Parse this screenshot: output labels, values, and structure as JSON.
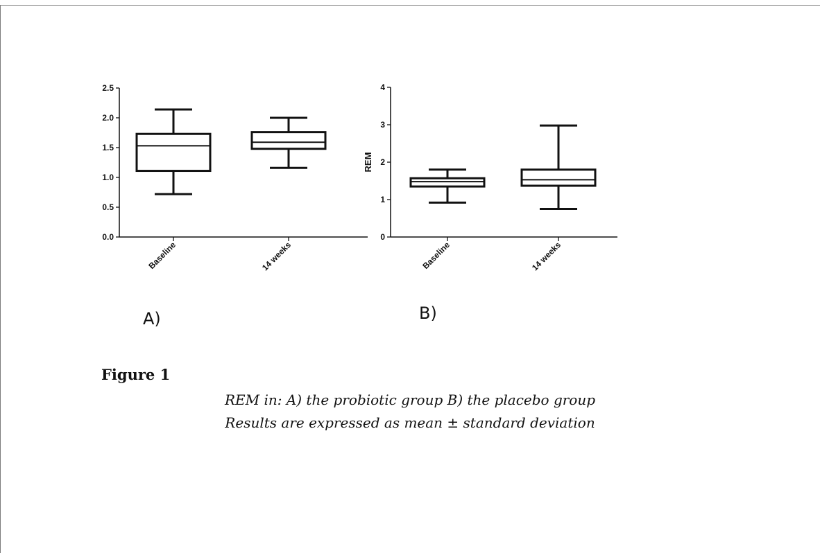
{
  "figure": {
    "title": "Figure 1",
    "caption_line1": "REM in: A) the probiotic group B) the placebo group",
    "caption_line2": "Results are expressed as mean ± standard deviation"
  },
  "chart_data": [
    {
      "type": "box",
      "panel_label": "A)",
      "ylabel": "",
      "ylim": [
        0,
        2.5
      ],
      "yticks": [
        "0.0",
        "0.5",
        "1.0",
        "1.5",
        "2.0",
        "2.5"
      ],
      "categories": [
        "Baseline",
        "14 weeks"
      ],
      "boxes": [
        {
          "category": "Baseline",
          "min": 0.72,
          "q1": 1.11,
          "median": 1.53,
          "q3": 1.73,
          "max": 2.14
        },
        {
          "category": "14 weeks",
          "min": 1.16,
          "q1": 1.48,
          "median": 1.59,
          "q3": 1.76,
          "max": 2.0
        }
      ],
      "grid": false
    },
    {
      "type": "box",
      "panel_label": "B)",
      "ylabel": "REM",
      "ylim": [
        0,
        4
      ],
      "yticks": [
        "0",
        "1",
        "2",
        "3",
        "4"
      ],
      "categories": [
        "Baseline",
        "14 weeks"
      ],
      "boxes": [
        {
          "category": "Baseline",
          "min": 0.92,
          "q1": 1.35,
          "median": 1.48,
          "q3": 1.57,
          "max": 1.8
        },
        {
          "category": "14 weeks",
          "min": 0.75,
          "q1": 1.37,
          "median": 1.53,
          "q3": 1.8,
          "max": 2.98
        }
      ],
      "grid": false
    }
  ]
}
